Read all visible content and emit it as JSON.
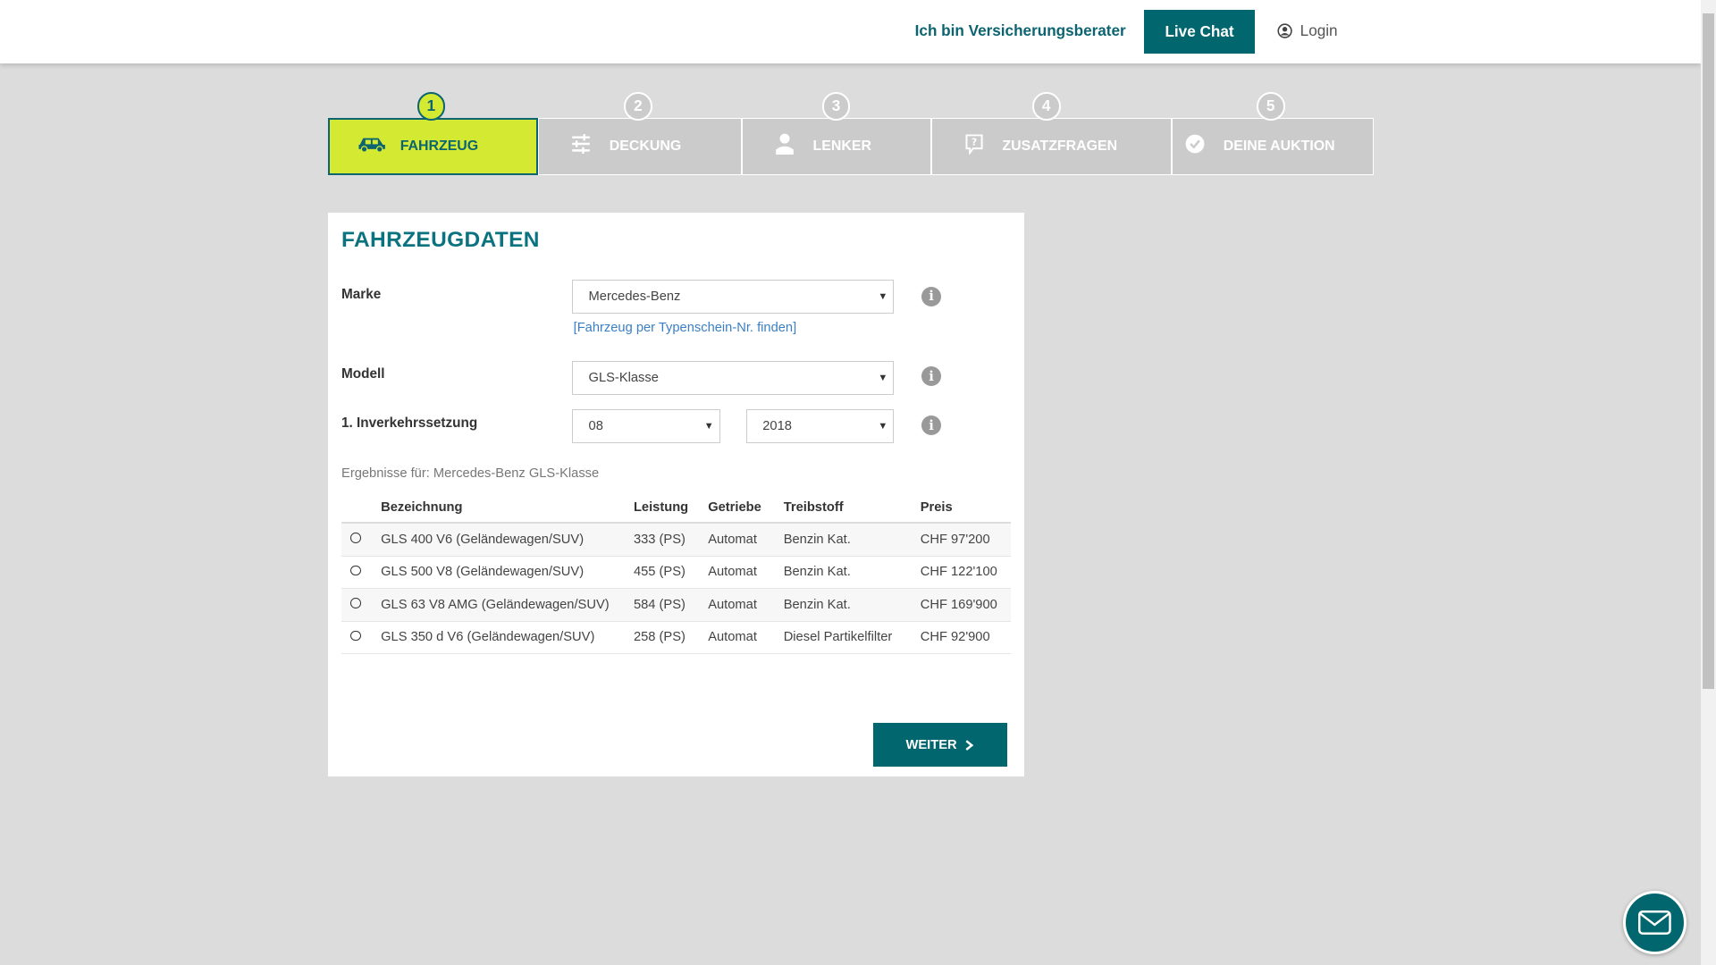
{
  "header": {
    "advisor_link": "Ich bin Versicherungsberater",
    "live_chat": "Live Chat",
    "login": "Login"
  },
  "steps": [
    {
      "number": "1",
      "label": "FAHRZEUG",
      "icon": "car-icon",
      "active": true
    },
    {
      "number": "2",
      "label": "DECKUNG",
      "icon": "sliders-icon",
      "active": false
    },
    {
      "number": "3",
      "label": "LENKER",
      "icon": "person-icon",
      "active": false
    },
    {
      "number": "4",
      "label": "ZUSATZFRAGEN",
      "icon": "question-bubble-icon",
      "active": false
    },
    {
      "number": "5",
      "label": "DEINE AUKTION",
      "icon": "check-circle-icon",
      "active": false
    }
  ],
  "form": {
    "title": "FAHRZEUGDATEN",
    "marke_label": "Marke",
    "marke_value": "Mercedes-Benz",
    "typenschein_link": "[Fahrzeug per Typenschein-Nr. finden]",
    "modell_label": "Modell",
    "modell_value": "GLS-Klasse",
    "inverkehr_label": "1. Inverkehrssetzung",
    "month_value": "08",
    "year_value": "2018",
    "results_text": "Ergebnisse für: Mercedes-Benz GLS-Klasse"
  },
  "table": {
    "columns": [
      "Bezeichnung",
      "Leistung",
      "Getriebe",
      "Treibstoff",
      "Preis"
    ],
    "rows": [
      [
        "GLS 400 V6 (Geländewagen/SUV)",
        "333 (PS)",
        "Automat",
        "Benzin Kat.",
        "CHF 97'200"
      ],
      [
        "GLS 500 V8 (Geländewagen/SUV)",
        "455 (PS)",
        "Automat",
        "Benzin Kat.",
        "CHF 122'100"
      ],
      [
        "GLS 63 V8 AMG (Geländewagen/SUV)",
        "584 (PS)",
        "Automat",
        "Benzin Kat.",
        "CHF 169'900"
      ],
      [
        "GLS 350 d V6 (Geländewagen/SUV)",
        "258 (PS)",
        "Automat",
        "Diesel Partikelfilter",
        "CHF 92'900"
      ]
    ]
  },
  "weiter_label": "WEITER",
  "colors": {
    "primary": "#02666e",
    "accent": "#d4e932",
    "step_inactive": "#cbcbcb"
  }
}
